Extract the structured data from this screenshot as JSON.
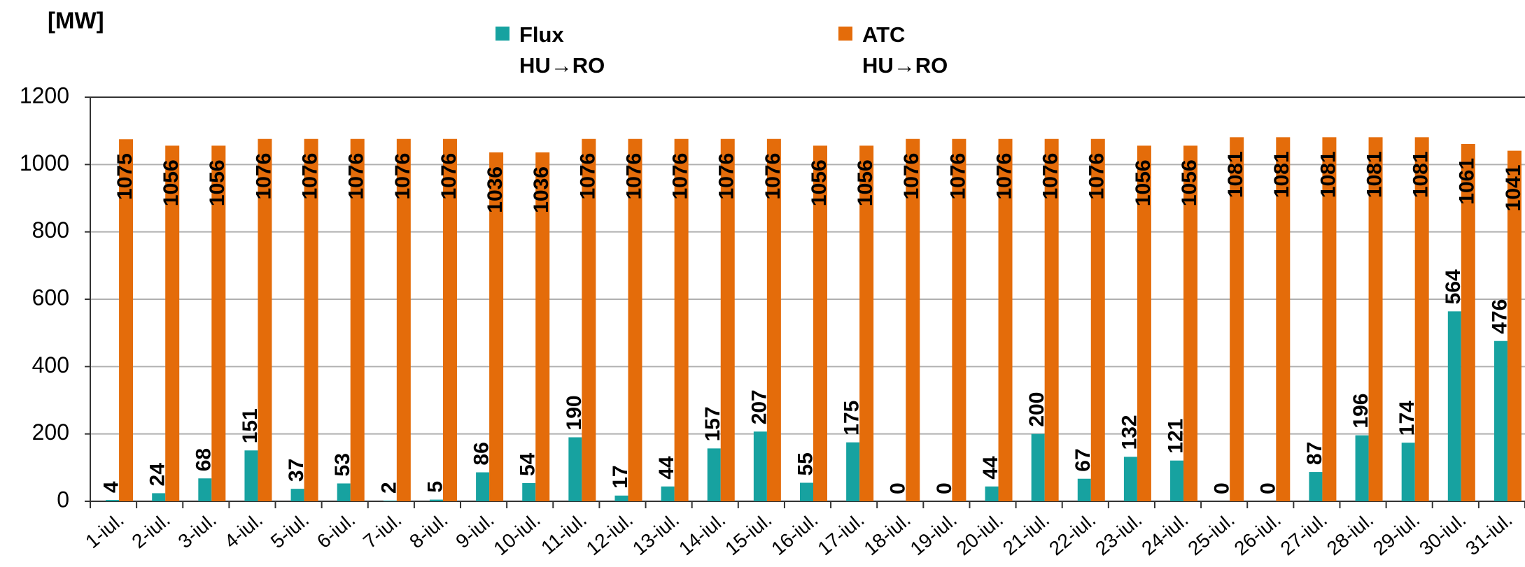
{
  "chart_data": {
    "type": "bar",
    "y_label": "[MW]",
    "categories": [
      "1-iul.",
      "2-iul.",
      "3-iul.",
      "4-iul.",
      "5-iul.",
      "6-iul.",
      "7-iul.",
      "8-iul.",
      "9-iul.",
      "10-iul.",
      "11-iul.",
      "12-iul.",
      "13-iul.",
      "14-iul.",
      "15-iul.",
      "16-iul.",
      "17-iul.",
      "18-iul.",
      "19-iul.",
      "20-iul.",
      "21-iul.",
      "22-iul.",
      "23-iul.",
      "24-iul.",
      "25-iul.",
      "26-iul.",
      "27-iul.",
      "28-iul.",
      "29-iul.",
      "30-iul.",
      "31-iul."
    ],
    "series": [
      {
        "name": "Flux HU→RO",
        "color": "#17a2a0",
        "values": [
          4,
          24,
          68,
          151,
          37,
          53,
          2,
          5,
          86,
          54,
          190,
          17,
          44,
          157,
          207,
          55,
          175,
          0,
          0,
          44,
          200,
          67,
          132,
          121,
          0,
          0,
          87,
          196,
          174,
          564,
          476
        ]
      },
      {
        "name": "ATC HU→RO",
        "color": "#e46c0a",
        "values": [
          1075,
          1056,
          1056,
          1076,
          1076,
          1076,
          1076,
          1076,
          1036,
          1036,
          1076,
          1076,
          1076,
          1076,
          1076,
          1056,
          1056,
          1076,
          1076,
          1076,
          1076,
          1076,
          1056,
          1056,
          1081,
          1081,
          1081,
          1081,
          1081,
          1061,
          1041
        ]
      }
    ],
    "ylim": [
      0,
      1200
    ],
    "yticks": [
      0,
      200,
      400,
      600,
      800,
      1000,
      1200
    ],
    "grid": true,
    "data_labels": true
  }
}
